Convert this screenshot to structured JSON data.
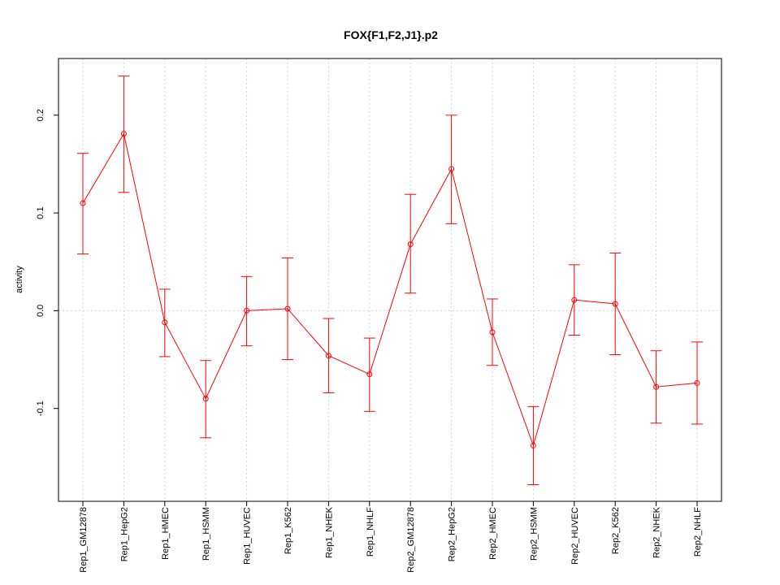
{
  "chart_data": {
    "type": "line",
    "title": "FOX{F1,F2,J1}.p2",
    "xlabel": "",
    "ylabel": "activity",
    "ylim": [
      -0.195,
      0.258
    ],
    "grid": true,
    "y_ticks": [
      -0.1,
      0.0,
      0.1,
      0.2
    ],
    "y_tick_labels": [
      "-0.1",
      "0.0",
      "0.1",
      "0.2"
    ],
    "categories": [
      "Rep1_GM12878",
      "Rep1_HepG2",
      "Rep1_HMEC",
      "Rep1_HSMM",
      "Rep1_HUVEC",
      "Rep1_K562",
      "Rep1_NHEK",
      "Rep1_NHLF",
      "Rep2_GM12878",
      "Rep2_HepG2",
      "Rep2_HMEC",
      "Rep2_HSMM",
      "Rep2_HUVEC",
      "Rep2_K562",
      "Rep2_NHEK",
      "Rep2_NHLF"
    ],
    "series": [
      {
        "values": [
          0.11,
          0.181,
          -0.012,
          -0.09,
          0.0,
          0.002,
          -0.046,
          -0.065,
          0.068,
          0.145,
          -0.022,
          -0.138,
          0.011,
          0.007,
          -0.078,
          -0.074
        ],
        "lower": [
          0.058,
          0.121,
          -0.047,
          -0.13,
          -0.036,
          -0.05,
          -0.084,
          -0.103,
          0.018,
          0.089,
          -0.056,
          -0.178,
          -0.025,
          -0.045,
          -0.115,
          -0.116
        ],
        "upper": [
          0.161,
          0.24,
          0.022,
          -0.051,
          0.035,
          0.054,
          -0.008,
          -0.028,
          0.119,
          0.2,
          0.012,
          -0.098,
          0.047,
          0.059,
          -0.041,
          -0.032
        ],
        "color": "#ff0000"
      }
    ]
  }
}
